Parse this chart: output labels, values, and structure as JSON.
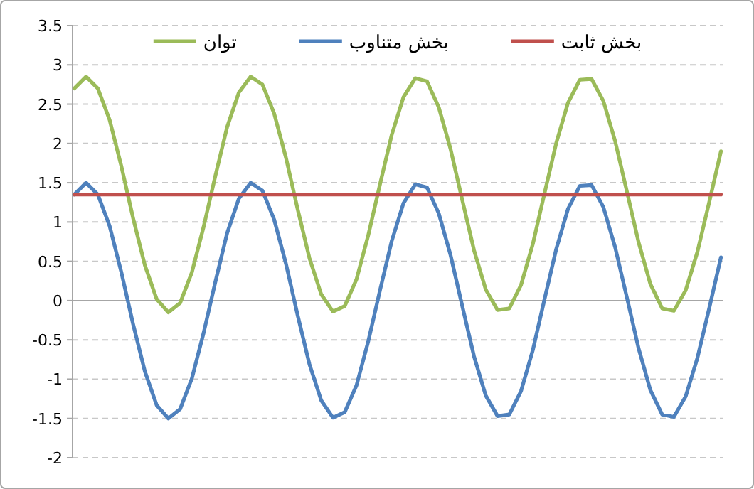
{
  "chart_data": {
    "type": "line",
    "categories": [
      null,
      null,
      null,
      null,
      null,
      null,
      null,
      null,
      null,
      null,
      null,
      null,
      null,
      null,
      null,
      null,
      null,
      null,
      null,
      null,
      null,
      null,
      null,
      null,
      null,
      null,
      null,
      null,
      null,
      null,
      null,
      null,
      null,
      null,
      null,
      null,
      null,
      null,
      null,
      null,
      null,
      null,
      null,
      null,
      null,
      null,
      null,
      null,
      null,
      null,
      null,
      null,
      null,
      null,
      null,
      null
    ],
    "series": [
      {
        "name": "توان",
        "color": "#9bbb59",
        "values": [
          2.7,
          2.85,
          2.7,
          2.3,
          1.71,
          1.05,
          0.45,
          0.02,
          -0.15,
          -0.03,
          0.36,
          0.94,
          1.59,
          2.21,
          2.65,
          2.85,
          2.75,
          2.38,
          1.82,
          1.16,
          0.54,
          0.08,
          -0.14,
          -0.07,
          0.27,
          0.83,
          1.48,
          2.11,
          2.59,
          2.83,
          2.79,
          2.46,
          1.93,
          1.28,
          0.64,
          0.14,
          -0.12,
          -0.1,
          0.2,
          0.72,
          1.37,
          2.01,
          2.52,
          2.81,
          2.82,
          2.54,
          2.03,
          1.39,
          0.74,
          0.21,
          -0.1,
          -0.13,
          0.13,
          0.62,
          1.25,
          1.9
        ]
      },
      {
        "name": "بخش متناوب",
        "color": "#4f81bd",
        "values": [
          1.35,
          1.5,
          1.35,
          0.95,
          0.36,
          -0.3,
          -0.9,
          -1.33,
          -1.5,
          -1.38,
          -0.99,
          -0.41,
          0.24,
          0.86,
          1.3,
          1.5,
          1.4,
          1.03,
          0.47,
          -0.19,
          -0.81,
          -1.27,
          -1.49,
          -1.42,
          -1.08,
          -0.52,
          0.13,
          0.76,
          1.24,
          1.48,
          1.44,
          1.11,
          0.58,
          -0.07,
          -0.71,
          -1.21,
          -1.47,
          -1.45,
          -1.15,
          -0.63,
          0.02,
          0.66,
          1.17,
          1.46,
          1.47,
          1.19,
          0.68,
          0.04,
          -0.61,
          -1.14,
          -1.45,
          -1.48,
          -1.22,
          -0.73,
          -0.1,
          0.55
        ]
      },
      {
        "name": "بخش ثابت",
        "color": "#c0504d",
        "values": [
          1.35,
          1.35,
          1.35,
          1.35,
          1.35,
          1.35,
          1.35,
          1.35,
          1.35,
          1.35,
          1.35,
          1.35,
          1.35,
          1.35,
          1.35,
          1.35,
          1.35,
          1.35,
          1.35,
          1.35,
          1.35,
          1.35,
          1.35,
          1.35,
          1.35,
          1.35,
          1.35,
          1.35,
          1.35,
          1.35,
          1.35,
          1.35,
          1.35,
          1.35,
          1.35,
          1.35,
          1.35,
          1.35,
          1.35,
          1.35,
          1.35,
          1.35,
          1.35,
          1.35,
          1.35,
          1.35,
          1.35,
          1.35,
          1.35,
          1.35,
          1.35,
          1.35,
          1.35,
          1.35,
          1.35,
          1.35
        ]
      }
    ],
    "ylim": [
      -2,
      3.5
    ],
    "yticks": [
      -2,
      -1.5,
      -1,
      -0.5,
      0,
      0.5,
      1,
      1.5,
      2,
      2.5,
      3,
      3.5
    ],
    "grid": "y",
    "legend": "top",
    "tick_labels": "y",
    "marker": "none",
    "line_style": "solid"
  }
}
